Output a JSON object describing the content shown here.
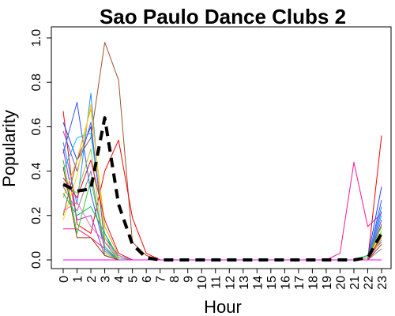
{
  "chart_data": {
    "type": "line",
    "title": "Sao Paulo Dance Clubs 2",
    "xlabel": "Hour",
    "ylabel": "Popularity",
    "x": [
      0,
      1,
      2,
      3,
      4,
      5,
      6,
      7,
      8,
      9,
      10,
      11,
      12,
      13,
      14,
      15,
      16,
      17,
      18,
      19,
      20,
      21,
      22,
      23
    ],
    "x_tick_labels": [
      "0",
      "1",
      "2",
      "3",
      "4",
      "5",
      "6",
      "7",
      "8",
      "9",
      "10",
      "11",
      "12",
      "13",
      "14",
      "15",
      "16",
      "17",
      "18",
      "19",
      "20",
      "21",
      "22",
      "23"
    ],
    "ylim": [
      0,
      1.0
    ],
    "y_ticks": [
      0.0,
      0.2,
      0.4,
      0.6,
      0.8,
      1.0
    ],
    "y_tick_labels": [
      "0.0",
      "0.2",
      "0.4",
      "0.6",
      "0.8",
      "1.0"
    ],
    "grid": false,
    "legend": "none",
    "series": [
      {
        "color": "#a0522d",
        "width": 1,
        "dash": "solid",
        "values": [
          0.2,
          0.45,
          0.55,
          0.98,
          0.81,
          0.08,
          0.02,
          0,
          0,
          0,
          0,
          0,
          0,
          0,
          0,
          0,
          0,
          0,
          0,
          0,
          0,
          0,
          0,
          0.16
        ]
      },
      {
        "color": "#ff0000",
        "width": 1,
        "dash": "solid",
        "values": [
          0.67,
          0.16,
          0.12,
          0.4,
          0.54,
          0.19,
          0.03,
          0,
          0,
          0,
          0,
          0,
          0,
          0,
          0,
          0,
          0,
          0,
          0,
          0,
          0,
          0,
          0,
          0.56
        ]
      },
      {
        "color": "#ff1493",
        "width": 1,
        "dash": "solid",
        "values": [
          0.14,
          0.14,
          0.1,
          0.05,
          0,
          0,
          0,
          0,
          0,
          0,
          0,
          0,
          0,
          0,
          0,
          0,
          0,
          0,
          0,
          0,
          0.03,
          0.44,
          0.15,
          0.21
        ]
      },
      {
        "color": "#1f3fff",
        "width": 1,
        "dash": "solid",
        "values": [
          0.62,
          0.45,
          0.6,
          0.1,
          0.02,
          0,
          0,
          0,
          0,
          0,
          0,
          0,
          0,
          0,
          0,
          0,
          0,
          0,
          0,
          0,
          0,
          0,
          0.01,
          0.33
        ]
      },
      {
        "color": "#3355ff",
        "width": 1,
        "dash": "solid",
        "values": [
          0.48,
          0.71,
          0.3,
          0.05,
          0,
          0,
          0,
          0,
          0,
          0,
          0,
          0,
          0,
          0,
          0,
          0,
          0,
          0,
          0,
          0,
          0,
          0,
          0,
          0.27
        ]
      },
      {
        "color": "#1e90ff",
        "width": 1,
        "dash": "solid",
        "values": [
          0.53,
          0.25,
          0.75,
          0.05,
          0,
          0,
          0,
          0,
          0,
          0,
          0,
          0,
          0,
          0,
          0,
          0,
          0,
          0,
          0,
          0,
          0,
          0,
          0.01,
          0.24
        ]
      },
      {
        "color": "#00bfff",
        "width": 1,
        "dash": "solid",
        "values": [
          0.4,
          0.55,
          0.57,
          0.12,
          0,
          0,
          0,
          0,
          0,
          0,
          0,
          0,
          0,
          0,
          0,
          0,
          0,
          0,
          0,
          0,
          0,
          0,
          0,
          0.2
        ]
      },
      {
        "color": "#6a5acd",
        "width": 1,
        "dash": "solid",
        "values": [
          0.58,
          0.4,
          0.62,
          0.08,
          0,
          0,
          0,
          0,
          0,
          0,
          0,
          0,
          0,
          0,
          0,
          0,
          0,
          0,
          0,
          0,
          0,
          0,
          0,
          0.22
        ]
      },
      {
        "color": "#9932cc",
        "width": 1,
        "dash": "solid",
        "values": [
          0.5,
          0.18,
          0.2,
          0.02,
          0,
          0,
          0,
          0,
          0,
          0,
          0,
          0,
          0,
          0,
          0,
          0,
          0,
          0,
          0,
          0,
          0,
          0,
          0,
          0.18
        ]
      },
      {
        "color": "#ffa500",
        "width": 1,
        "dash": "solid",
        "values": [
          0.28,
          0.45,
          0.68,
          0.15,
          0.02,
          0,
          0,
          0,
          0,
          0,
          0,
          0,
          0,
          0,
          0,
          0,
          0,
          0,
          0,
          0,
          0,
          0,
          0,
          0.1
        ]
      },
      {
        "color": "#ffd700",
        "width": 1,
        "dash": "solid",
        "values": [
          0.18,
          0.38,
          0.7,
          0.1,
          0,
          0,
          0,
          0,
          0,
          0,
          0,
          0,
          0,
          0,
          0,
          0,
          0,
          0,
          0,
          0,
          0,
          0,
          0,
          0.12
        ]
      },
      {
        "color": "#9acd32",
        "width": 1,
        "dash": "solid",
        "values": [
          0.35,
          0.3,
          0.5,
          0.03,
          0,
          0,
          0,
          0,
          0,
          0,
          0,
          0,
          0,
          0,
          0,
          0,
          0,
          0,
          0,
          0,
          0,
          0,
          0.01,
          0.13
        ]
      },
      {
        "color": "#32cd32",
        "width": 1,
        "dash": "solid",
        "values": [
          0.45,
          0.12,
          0.36,
          0.06,
          0,
          0,
          0,
          0,
          0,
          0,
          0,
          0,
          0,
          0,
          0,
          0,
          0,
          0,
          0,
          0,
          0,
          0,
          0.02,
          0.15
        ]
      },
      {
        "color": "#00c957",
        "width": 1,
        "dash": "solid",
        "values": [
          0.3,
          0.2,
          0.24,
          0.12,
          0.01,
          0,
          0,
          0,
          0,
          0,
          0,
          0,
          0,
          0,
          0,
          0,
          0,
          0,
          0,
          0,
          0,
          0,
          0.02,
          0.08
        ]
      },
      {
        "color": "#808080",
        "width": 1,
        "dash": "solid",
        "values": [
          0.33,
          0.22,
          0.4,
          0.04,
          0,
          0,
          0,
          0,
          0,
          0,
          0,
          0,
          0,
          0,
          0,
          0,
          0,
          0,
          0,
          0,
          0,
          0,
          0,
          0.05
        ]
      },
      {
        "color": "#8b4513",
        "width": 1,
        "dash": "solid",
        "values": [
          0.42,
          0.1,
          0.1,
          0.02,
          0,
          0,
          0,
          0,
          0,
          0,
          0,
          0,
          0,
          0,
          0,
          0,
          0,
          0,
          0,
          0,
          0,
          0,
          0,
          0.07
        ]
      },
      {
        "color": "#ff69b4",
        "width": 1,
        "dash": "solid",
        "values": [
          0.22,
          0.26,
          0.15,
          0.08,
          0.02,
          0,
          0,
          0,
          0,
          0,
          0,
          0,
          0,
          0,
          0,
          0,
          0,
          0,
          0,
          0,
          0,
          0,
          0,
          0.09
        ]
      },
      {
        "color": "#dc143c",
        "width": 1,
        "dash": "solid",
        "values": [
          0.37,
          0.28,
          0.45,
          0.18,
          0.03,
          0,
          0,
          0,
          0,
          0,
          0,
          0,
          0,
          0,
          0,
          0,
          0,
          0,
          0,
          0,
          0,
          0,
          0,
          0.11
        ]
      },
      {
        "color": "#ff00ff",
        "width": 1,
        "dash": "solid",
        "values": [
          0,
          0,
          0,
          0,
          0,
          0,
          0,
          0,
          0,
          0,
          0,
          0,
          0,
          0,
          0,
          0,
          0,
          0,
          0,
          0,
          0,
          0,
          0,
          0
        ]
      },
      {
        "color": "#000000",
        "width": 4,
        "dash": "dashed",
        "values": [
          0.34,
          0.31,
          0.32,
          0.64,
          0.25,
          0.07,
          0.01,
          0,
          0,
          0,
          0,
          0,
          0,
          0,
          0,
          0,
          0,
          0,
          0,
          0,
          0,
          0,
          0.01,
          0.12
        ]
      }
    ]
  }
}
